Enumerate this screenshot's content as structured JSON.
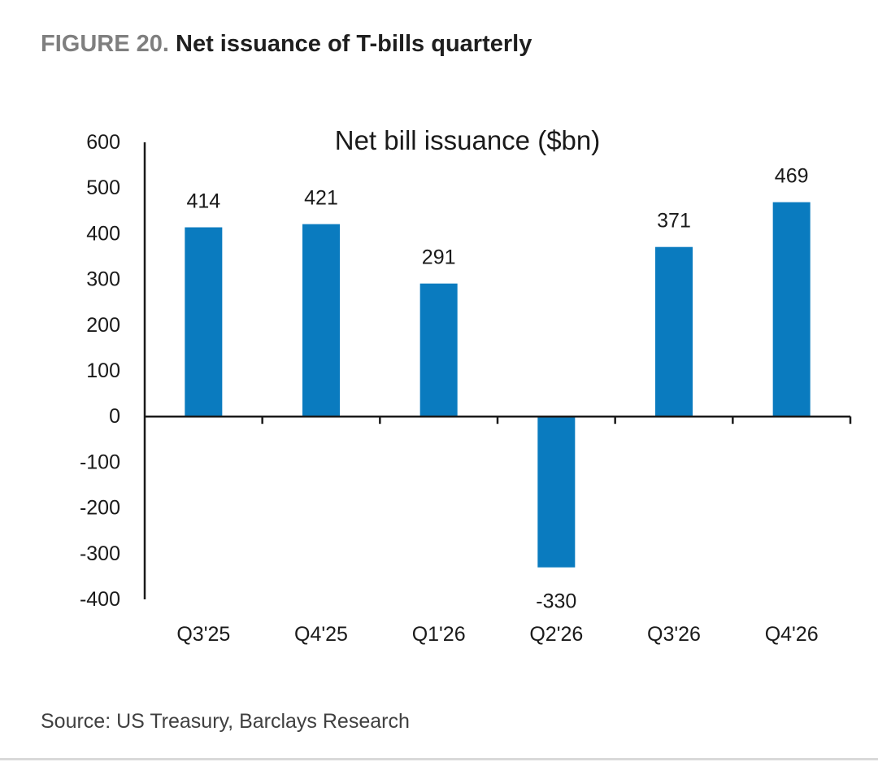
{
  "figure": {
    "label": "FIGURE 20.",
    "title": "Net issuance of T-bills quarterly",
    "source": "Source: US Treasury, Barclays Research"
  },
  "colors": {
    "bar": "#0a7bbf",
    "label_gray": "#7f7f7f",
    "axis": "#1a1a1a"
  },
  "chart_data": {
    "type": "bar",
    "title": "Net bill issuance ($bn)",
    "xlabel": "",
    "ylabel": "",
    "categories": [
      "Q3'25",
      "Q4'25",
      "Q1'26",
      "Q2'26",
      "Q3'26",
      "Q4'26"
    ],
    "values": [
      414,
      421,
      291,
      -330,
      371,
      469
    ],
    "data_labels": [
      "414",
      "421",
      "291",
      "-330",
      "371",
      "469"
    ],
    "ylim": [
      -400,
      600
    ],
    "yticks": [
      600,
      500,
      400,
      300,
      200,
      100,
      0,
      -100,
      -200,
      -300,
      -400
    ],
    "grid": false,
    "legend": "none"
  }
}
